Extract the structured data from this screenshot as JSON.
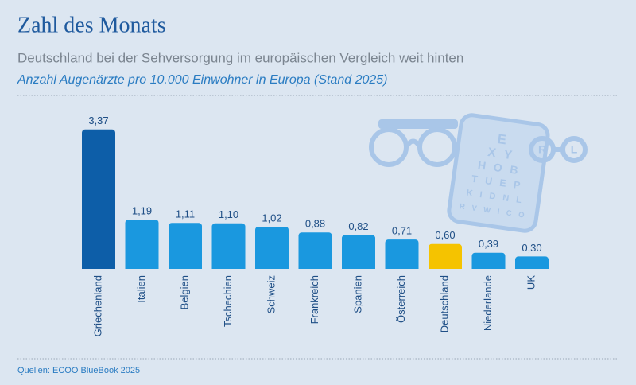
{
  "chart_data": {
    "type": "bar",
    "title": "Zahl des Monats",
    "subtitle": "Deutschland bei der Sehversorgung im europäischen Vergleich weit hinten",
    "caption": "Anzahl Augenärzte pro 10.000 Einwohner in Europa (Stand 2025)",
    "source": "Quellen: ECOO BlueBook 2025",
    "categories": [
      "Griechenland",
      "Italien",
      "Belgien",
      "Tschechien",
      "Schweiz",
      "Frankreich",
      "Spanien",
      "Österreich",
      "Deutschland",
      "Niederlande",
      "UK"
    ],
    "values": [
      3.37,
      1.19,
      1.11,
      1.1,
      1.02,
      0.88,
      0.82,
      0.71,
      0.6,
      0.39,
      0.3
    ],
    "value_labels": [
      "3,37",
      "1,19",
      "1,11",
      "1,10",
      "1,02",
      "0,88",
      "0,82",
      "0,71",
      "0,60",
      "0,39",
      "0,30"
    ],
    "colors": [
      "#0d5ea8",
      "#1a98df",
      "#1a98df",
      "#1a98df",
      "#1a98df",
      "#1a98df",
      "#1a98df",
      "#1a98df",
      "#f5c300",
      "#1a98df",
      "#1a98df"
    ],
    "grid": false
  },
  "illustration": {
    "eye_chart_rows": [
      "E",
      "X Y",
      "H O B",
      "T U E P",
      "K I D N L",
      "R V W I C O"
    ],
    "lens_labels": [
      "R",
      "L"
    ]
  }
}
